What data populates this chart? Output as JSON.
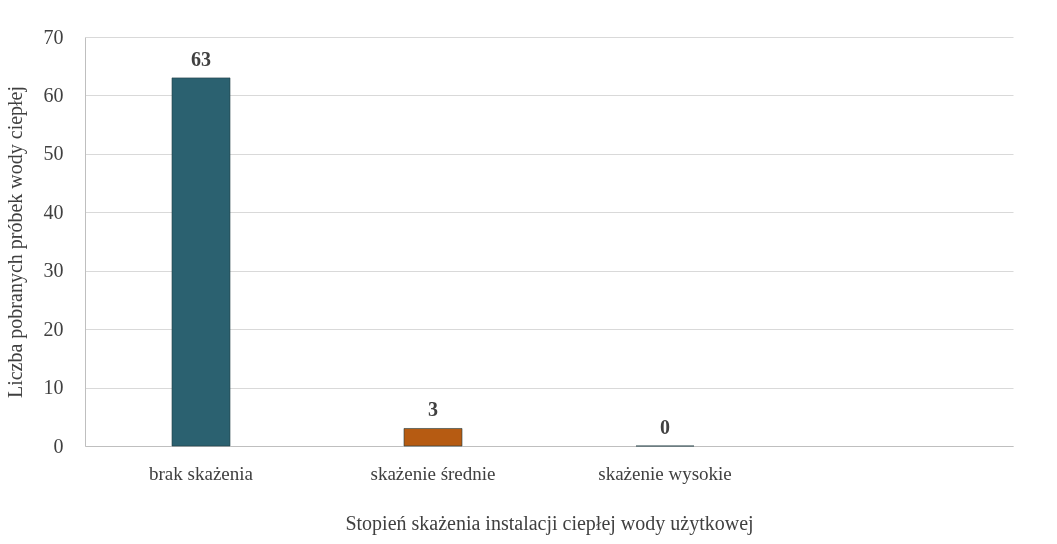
{
  "chart_data": {
    "type": "bar",
    "xlabel": "Stopień skażenia instalacji ciepłej wody użytkowej",
    "ylabel": "Liczba pobranych próbek wody ciepłej",
    "categories": [
      "brak skażenia",
      "skażenie średnie",
      "skażenie wysokie",
      null
    ],
    "values": [
      63,
      3,
      0,
      null
    ],
    "colors": [
      "#2b6170",
      "#b65b12",
      null,
      null
    ],
    "ylim": [
      0,
      70
    ],
    "yticks": [
      0,
      10,
      20,
      30,
      40,
      50,
      60,
      70
    ],
    "grid": "y",
    "data_labels": true
  }
}
